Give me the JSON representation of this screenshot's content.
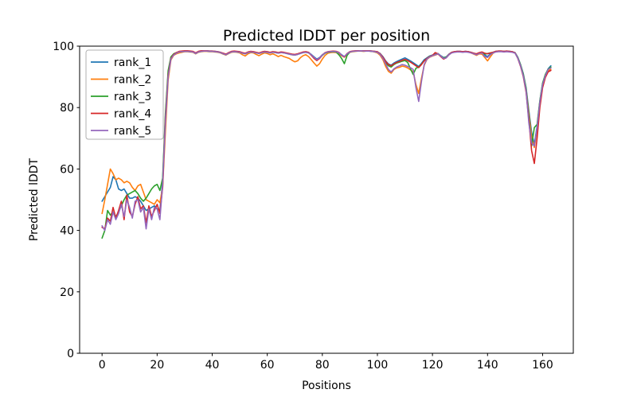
{
  "figure": {
    "title": "Predicted lDDT per position",
    "xlabel": "Positions",
    "ylabel": "Predicted lDDT"
  },
  "chart_data": {
    "type": "line",
    "title": "Predicted lDDT per position",
    "xlabel": "Positions",
    "ylabel": "Predicted lDDT",
    "xlim": [
      -8.15,
      171.15
    ],
    "ylim": [
      0,
      100
    ],
    "xticks": [
      0,
      20,
      40,
      60,
      80,
      100,
      120,
      140,
      160
    ],
    "yticks": [
      0,
      20,
      40,
      60,
      80,
      100
    ],
    "grid": false,
    "legend_position": "upper left",
    "x_start": 0,
    "x_step": 1,
    "axis_color": "#000000",
    "legend_border_color": "#b0b0b0",
    "series": [
      {
        "name": "rank_1",
        "color": "#1f77b4",
        "values": [
          49.5,
          51,
          52.5,
          54,
          57.5,
          56.5,
          53.5,
          53,
          53.5,
          52,
          50.5,
          50.5,
          51,
          50.5,
          49.5,
          48,
          46.5,
          47,
          47.5,
          48,
          47,
          46.5,
          56,
          77,
          91,
          96.2,
          97.4,
          97.8,
          98.2,
          98.3,
          98.4,
          98.4,
          98.3,
          98.2,
          97.7,
          98.2,
          98.4,
          98.5,
          98.5,
          98.4,
          98.4,
          98.3,
          98.2,
          98.0,
          97.6,
          97.3,
          97.8,
          98.2,
          98.3,
          98.2,
          98.1,
          97.8,
          97.6,
          98.0,
          98.2,
          98.1,
          97.9,
          97.7,
          98.0,
          98.2,
          98.1,
          97.9,
          98.1,
          98.0,
          97.8,
          98.0,
          97.9,
          97.7,
          97.5,
          97.3,
          97.2,
          97.4,
          97.7,
          98.0,
          98.1,
          97.9,
          97.3,
          96.5,
          95.8,
          96.3,
          97.2,
          97.8,
          98.1,
          98.2,
          98.3,
          98.2,
          97.9,
          97.2,
          96.6,
          97.5,
          98.1,
          98.3,
          98.4,
          98.5,
          98.5,
          98.4,
          98.5,
          98.5,
          98.4,
          98.3,
          98.1,
          97.6,
          96.6,
          95.2,
          94.2,
          93.8,
          94.5,
          95.0,
          95.4,
          95.8,
          96.2,
          95.7,
          95.2,
          94.6,
          94.0,
          93.4,
          94.4,
          95.6,
          96.2,
          96.8,
          97.1,
          97.4,
          97.6,
          96.9,
          96.3,
          96.5,
          97.4,
          98.0,
          98.2,
          98.3,
          98.3,
          98.2,
          98.3,
          98.2,
          98.0,
          97.7,
          97.4,
          97.8,
          98.0,
          97.1,
          96.6,
          97.5,
          98.0,
          98.3,
          98.4,
          98.4,
          98.3,
          98.4,
          98.3,
          98.2,
          97.9,
          96.4,
          94.0,
          91.0,
          86.5,
          79.0,
          72.0,
          68.0,
          74.0,
          82.0,
          87.8,
          90.6,
          92.6,
          93.6
        ]
      },
      {
        "name": "rank_2",
        "color": "#ff7f0e",
        "values": [
          45.5,
          50,
          55,
          60,
          58.5,
          56.5,
          57,
          56.5,
          55.5,
          56,
          55.5,
          54,
          53,
          54.5,
          55,
          52.5,
          50,
          49.5,
          49,
          48.5,
          50,
          49,
          54,
          72,
          89,
          95.5,
          97.0,
          97.5,
          97.8,
          98.0,
          98.2,
          98.2,
          98.1,
          98.0,
          97.5,
          98.0,
          98.2,
          98.3,
          98.3,
          98.2,
          98.2,
          98.1,
          98.0,
          97.8,
          97.4,
          97.1,
          97.6,
          98.0,
          98.1,
          98.0,
          97.8,
          97.2,
          96.8,
          97.5,
          97.9,
          97.8,
          97.3,
          96.9,
          97.4,
          97.8,
          97.6,
          97.2,
          97.5,
          97.1,
          96.6,
          97.0,
          96.6,
          96.3,
          96.0,
          95.4,
          94.9,
          95.2,
          96.2,
          96.9,
          97.2,
          96.6,
          95.6,
          94.5,
          93.5,
          94.3,
          95.8,
          97.0,
          97.7,
          97.9,
          98.0,
          97.9,
          97.6,
          96.9,
          96.4,
          97.3,
          98.0,
          98.2,
          98.3,
          98.4,
          98.4,
          98.3,
          98.4,
          98.4,
          98.3,
          98.1,
          97.8,
          97.0,
          95.6,
          93.4,
          91.8,
          91.2,
          92.4,
          92.9,
          93.1,
          93.5,
          93.3,
          92.9,
          92.3,
          91.6,
          87.5,
          84.6,
          89.5,
          93.8,
          95.7,
          96.4,
          96.8,
          97.1,
          97.4,
          96.7,
          96.1,
          96.3,
          97.2,
          97.9,
          98.1,
          98.2,
          98.2,
          98.1,
          98.2,
          98.1,
          97.8,
          97.4,
          97.0,
          97.5,
          97.4,
          96.3,
          95.2,
          96.5,
          97.7,
          98.2,
          98.3,
          98.3,
          98.2,
          98.3,
          98.2,
          98.1,
          97.8,
          96.2,
          93.8,
          90.6,
          86.0,
          78.0,
          70.5,
          67.0,
          73.0,
          81.5,
          87.2,
          90.2,
          92.0,
          92.4
        ]
      },
      {
        "name": "rank_3",
        "color": "#2ca02c",
        "values": [
          37.5,
          40,
          46.5,
          45,
          46,
          44.5,
          46,
          48,
          50,
          51.5,
          52,
          52.5,
          53,
          52,
          50.5,
          49.5,
          50.5,
          52,
          53.5,
          54.5,
          55,
          53,
          57,
          78,
          92,
          96.5,
          97.5,
          97.9,
          98.1,
          98.2,
          98.3,
          98.3,
          98.2,
          98.1,
          97.6,
          98.1,
          98.3,
          98.4,
          98.4,
          98.3,
          98.3,
          98.2,
          98.1,
          97.9,
          97.5,
          97.2,
          97.7,
          98.1,
          98.2,
          98.1,
          98.0,
          97.7,
          97.5,
          97.9,
          98.1,
          98.0,
          97.8,
          97.6,
          97.9,
          98.1,
          98.0,
          97.8,
          98.0,
          97.9,
          97.7,
          97.9,
          97.8,
          97.6,
          97.4,
          97.2,
          97.1,
          97.3,
          97.6,
          97.9,
          98.0,
          97.8,
          97.1,
          96.2,
          95.5,
          96.1,
          97.0,
          97.7,
          98.0,
          98.1,
          98.2,
          98.1,
          97.2,
          96.0,
          94.3,
          97.0,
          98.1,
          98.3,
          98.4,
          98.5,
          98.5,
          98.4,
          98.5,
          98.4,
          98.3,
          98.2,
          98.0,
          97.4,
          96.2,
          94.6,
          93.6,
          93.2,
          94.0,
          94.5,
          94.8,
          95.1,
          95.3,
          94.7,
          92.6,
          90.8,
          92.8,
          93.2,
          94.1,
          95.2,
          96.0,
          96.7,
          97.0,
          97.3,
          97.5,
          96.8,
          96.2,
          96.4,
          97.3,
          97.9,
          98.1,
          98.2,
          98.2,
          98.1,
          98.2,
          98.1,
          97.9,
          97.6,
          97.3,
          97.7,
          97.9,
          97.4,
          97.6,
          97.8,
          98.0,
          98.2,
          98.3,
          98.3,
          98.2,
          98.3,
          98.2,
          98.1,
          97.8,
          96.3,
          93.9,
          90.8,
          86.2,
          77.0,
          67.5,
          73.5,
          74.5,
          82.3,
          88.0,
          90.8,
          92.5,
          93.2
        ]
      },
      {
        "name": "rank_4",
        "color": "#d62728",
        "values": [
          41,
          40.5,
          44,
          43,
          47.5,
          44,
          46.5,
          49.5,
          43.5,
          51.5,
          46,
          44.5,
          48.5,
          51,
          47,
          48,
          42.5,
          48,
          44.5,
          46.5,
          48.5,
          45.5,
          54,
          76,
          90.5,
          96.0,
          97.3,
          97.9,
          98.3,
          98.4,
          98.5,
          98.5,
          98.4,
          98.3,
          97.8,
          98.3,
          98.5,
          98.5,
          98.5,
          98.4,
          98.4,
          98.3,
          98.2,
          98.0,
          97.7,
          97.4,
          97.9,
          98.3,
          98.4,
          98.3,
          98.2,
          97.9,
          97.7,
          98.1,
          98.3,
          98.2,
          98.0,
          97.8,
          98.1,
          98.3,
          98.2,
          98.0,
          98.2,
          98.1,
          97.9,
          98.1,
          98.0,
          97.8,
          97.6,
          97.4,
          97.3,
          97.5,
          97.8,
          98.1,
          98.2,
          98.0,
          97.0,
          96.0,
          95.3,
          96.0,
          97.1,
          97.9,
          98.2,
          98.3,
          98.4,
          98.3,
          98.0,
          97.0,
          96.5,
          97.6,
          98.2,
          98.4,
          98.5,
          98.5,
          98.5,
          98.5,
          98.5,
          98.5,
          98.4,
          98.3,
          98.2,
          97.5,
          96.4,
          95.0,
          94.0,
          93.6,
          94.2,
          94.7,
          95.0,
          95.4,
          95.7,
          95.3,
          94.8,
          94.2,
          93.6,
          93.0,
          94.0,
          95.2,
          96.0,
          96.6,
          97.0,
          97.9,
          97.5,
          96.6,
          95.8,
          96.2,
          97.3,
          98.0,
          98.2,
          98.3,
          98.3,
          98.2,
          98.3,
          98.2,
          98.0,
          97.7,
          97.5,
          97.9,
          98.1,
          97.7,
          97.5,
          97.8,
          98.0,
          98.3,
          98.4,
          98.4,
          98.3,
          98.4,
          98.3,
          98.2,
          97.8,
          96.0,
          93.4,
          90.0,
          85.0,
          76.0,
          66.0,
          61.8,
          70.0,
          80.0,
          86.5,
          89.8,
          91.6,
          92.1
        ]
      },
      {
        "name": "rank_5",
        "color": "#9467bd",
        "values": [
          41.5,
          40,
          43.5,
          42,
          46,
          43.5,
          45.5,
          48.5,
          44.5,
          50,
          47.5,
          44,
          49.5,
          50,
          46,
          47.5,
          40.5,
          47,
          43.5,
          47.5,
          47,
          43.5,
          55,
          75,
          90,
          95.8,
          97.1,
          97.7,
          98.1,
          98.2,
          98.3,
          98.3,
          98.2,
          98.1,
          97.6,
          98.1,
          98.3,
          98.4,
          98.4,
          98.3,
          98.3,
          98.2,
          98.1,
          97.9,
          97.5,
          97.2,
          97.7,
          98.1,
          98.2,
          98.1,
          98.0,
          97.7,
          97.5,
          97.9,
          98.1,
          98.0,
          97.8,
          97.6,
          97.9,
          98.1,
          98.0,
          97.8,
          98.0,
          97.9,
          97.7,
          97.9,
          97.8,
          97.6,
          97.4,
          97.2,
          97.1,
          97.3,
          97.6,
          97.9,
          98.0,
          97.8,
          97.2,
          96.3,
          95.6,
          96.2,
          97.1,
          97.8,
          98.1,
          98.2,
          98.3,
          98.2,
          97.9,
          97.1,
          96.6,
          97.5,
          98.1,
          98.3,
          98.4,
          98.4,
          98.5,
          98.4,
          98.4,
          98.4,
          98.3,
          98.2,
          98.0,
          97.3,
          96.0,
          94.2,
          92.4,
          91.6,
          92.6,
          93.2,
          93.6,
          94.0,
          93.8,
          93.4,
          93.0,
          92.4,
          86.5,
          82.0,
          88.5,
          94.0,
          95.8,
          96.5,
          96.9,
          97.2,
          97.5,
          96.8,
          96.0,
          96.2,
          97.2,
          97.8,
          98.0,
          98.1,
          98.1,
          98.0,
          98.1,
          98.0,
          97.8,
          97.5,
          97.2,
          97.6,
          97.8,
          96.6,
          96.3,
          97.2,
          97.8,
          98.1,
          98.2,
          98.2,
          98.1,
          98.2,
          98.1,
          98.0,
          97.7,
          96.1,
          93.6,
          90.3,
          85.5,
          75.0,
          68.5,
          67.5,
          73.5,
          81.8,
          87.5,
          90.4,
          92.4,
          92.9
        ]
      }
    ]
  }
}
